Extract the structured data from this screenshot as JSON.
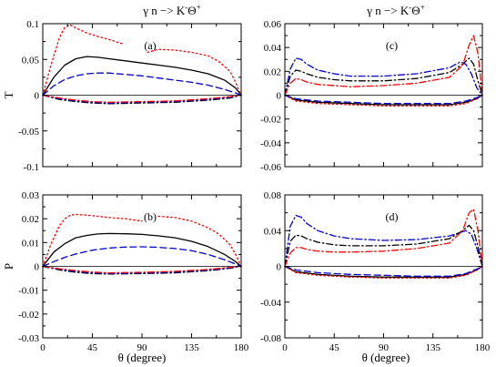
{
  "figure": {
    "col_titles": [
      {
        "gamma": "γ",
        "rest": "n −> K",
        "sup_k": "-",
        "theta": "Θ",
        "sup_t": "+"
      },
      {
        "gamma": "γ",
        "rest": "n −> K",
        "sup_k": "-",
        "theta": "Θ",
        "sup_t": "+"
      }
    ],
    "xlabel": "θ  (degree)"
  },
  "colors": {
    "black": "#000000",
    "red": "#ff0000",
    "blue": "#0000cc",
    "axis": "#000000"
  },
  "chart_data": [
    {
      "id": "a",
      "type": "line",
      "panel_label": "(a)",
      "ylabel": "T",
      "xlim": [
        0,
        180
      ],
      "ylim": [
        -0.1,
        0.1
      ],
      "xticks": [
        0,
        45,
        90,
        135,
        180
      ],
      "yticks": [
        -0.1,
        -0.05,
        0,
        0.05,
        0.1
      ],
      "yticklabels": [
        "-0.1",
        "-0.05",
        "0",
        "0.05",
        "0.1"
      ],
      "xticklabels": [
        "",
        "",
        "",
        "",
        ""
      ],
      "series": [
        {
          "color": "black",
          "dash": "solid",
          "x": [
            0,
            10,
            20,
            30,
            40,
            50,
            60,
            75,
            90,
            105,
            120,
            135,
            150,
            165,
            175,
            180
          ],
          "y": [
            0,
            0.025,
            0.042,
            0.051,
            0.054,
            0.053,
            0.051,
            0.048,
            0.045,
            0.042,
            0.039,
            0.035,
            0.03,
            0.021,
            0.01,
            0
          ]
        },
        {
          "color": "red",
          "dash": "dot",
          "x": [
            0,
            8,
            15,
            20,
            25,
            30,
            40,
            50,
            60,
            72
          ],
          "y": [
            0,
            0.045,
            0.08,
            0.095,
            0.098,
            0.094,
            0.087,
            0.082,
            0.078,
            0.072
          ]
        },
        {
          "color": "red",
          "dash": "dot",
          "x": [
            95,
            105,
            120,
            135,
            150,
            160,
            170,
            175,
            180
          ],
          "y": [
            0.06,
            0.064,
            0.063,
            0.06,
            0.055,
            0.047,
            0.033,
            0.018,
            0
          ]
        },
        {
          "color": "blue",
          "dash": "dash",
          "x": [
            0,
            10,
            20,
            30,
            40,
            50,
            60,
            75,
            90,
            105,
            120,
            135,
            150,
            165,
            175,
            180
          ],
          "y": [
            0,
            0.013,
            0.022,
            0.027,
            0.03,
            0.031,
            0.031,
            0.029,
            0.027,
            0.024,
            0.021,
            0.018,
            0.014,
            0.008,
            0.003,
            0
          ]
        },
        {
          "color": "black",
          "dash": "dashdot",
          "x": [
            0,
            15,
            30,
            45,
            60,
            90,
            120,
            150,
            170,
            180
          ],
          "y": [
            0,
            -0.006,
            -0.009,
            -0.011,
            -0.012,
            -0.011,
            -0.01,
            -0.007,
            -0.004,
            0
          ]
        },
        {
          "color": "blue",
          "dash": "dashdot",
          "x": [
            0,
            15,
            30,
            45,
            60,
            90,
            120,
            150,
            170,
            180
          ],
          "y": [
            0,
            -0.005,
            -0.008,
            -0.01,
            -0.011,
            -0.01,
            -0.009,
            -0.006,
            -0.003,
            0
          ]
        },
        {
          "color": "red",
          "dash": "dashdot",
          "x": [
            0,
            15,
            30,
            45,
            60,
            90,
            120,
            150,
            170,
            180
          ],
          "y": [
            0,
            -0.004,
            -0.007,
            -0.009,
            -0.01,
            -0.009,
            -0.008,
            -0.005,
            -0.002,
            0
          ]
        }
      ]
    },
    {
      "id": "c",
      "type": "line",
      "panel_label": "(c)",
      "ylabel": "",
      "xlim": [
        0,
        180
      ],
      "ylim": [
        -0.06,
        0.06
      ],
      "xticks": [
        0,
        45,
        90,
        135,
        180
      ],
      "yticks": [
        -0.06,
        -0.04,
        -0.02,
        0,
        0.02,
        0.04,
        0.06
      ],
      "yticklabels": [
        "-0.06",
        "-0.04",
        "-0.02",
        "0",
        "0.02",
        "0.04",
        "0.06"
      ],
      "xticklabels": [
        "",
        "",
        "",
        "",
        ""
      ],
      "series": [
        {
          "color": "blue",
          "dash": "dashdot",
          "x": [
            0,
            5,
            10,
            15,
            20,
            30,
            45,
            60,
            90,
            120,
            150,
            160,
            165,
            170,
            175,
            180
          ],
          "y": [
            0,
            0.022,
            0.031,
            0.03,
            0.026,
            0.021,
            0.018,
            0.016,
            0.016,
            0.018,
            0.023,
            0.028,
            0.026,
            0.018,
            0.006,
            0
          ]
        },
        {
          "color": "black",
          "dash": "dashdot",
          "x": [
            0,
            5,
            10,
            15,
            20,
            30,
            45,
            60,
            90,
            120,
            150,
            162,
            168,
            172,
            176,
            180
          ],
          "y": [
            0,
            0.016,
            0.021,
            0.02,
            0.018,
            0.015,
            0.013,
            0.012,
            0.012,
            0.014,
            0.019,
            0.026,
            0.031,
            0.026,
            0.012,
            0
          ]
        },
        {
          "color": "red",
          "dash": "dashdot",
          "x": [
            0,
            5,
            10,
            15,
            20,
            30,
            45,
            60,
            90,
            120,
            150,
            162,
            168,
            172,
            176,
            180
          ],
          "y": [
            0,
            0.01,
            0.014,
            0.013,
            0.011,
            0.009,
            0.008,
            0.007,
            0.008,
            0.01,
            0.015,
            0.025,
            0.042,
            0.05,
            0.035,
            0
          ]
        },
        {
          "color": "black",
          "dash": "solid",
          "x": [
            0,
            10,
            30,
            60,
            90,
            120,
            150,
            165,
            175,
            180
          ],
          "y": [
            0,
            -0.004,
            -0.006,
            -0.007,
            -0.008,
            -0.008,
            -0.008,
            -0.006,
            -0.003,
            0
          ]
        },
        {
          "color": "red",
          "dash": "dot",
          "x": [
            0,
            10,
            30,
            60,
            90,
            120,
            150,
            165,
            175,
            180
          ],
          "y": [
            0,
            -0.005,
            -0.007,
            -0.008,
            -0.009,
            -0.009,
            -0.009,
            -0.007,
            -0.003,
            0
          ]
        },
        {
          "color": "blue",
          "dash": "dash",
          "x": [
            0,
            10,
            30,
            60,
            90,
            120,
            150,
            165,
            175,
            180
          ],
          "y": [
            0,
            -0.003,
            -0.005,
            -0.006,
            -0.007,
            -0.007,
            -0.007,
            -0.005,
            -0.002,
            0
          ]
        }
      ]
    },
    {
      "id": "b",
      "type": "line",
      "panel_label": "(b)",
      "ylabel": "P",
      "xlim": [
        0,
        180
      ],
      "ylim": [
        -0.03,
        0.03
      ],
      "xticks": [
        0,
        45,
        90,
        135,
        180
      ],
      "yticks": [
        -0.03,
        -0.02,
        -0.01,
        0,
        0.01,
        0.02,
        0.03
      ],
      "yticklabels": [
        "-0.03",
        "-0.02",
        "-0.01",
        "0",
        "0.01",
        "0.02",
        "0.03"
      ],
      "xticklabels": [
        "0",
        "45",
        "90",
        "135",
        "180"
      ],
      "series": [
        {
          "color": "black",
          "dash": "solid",
          "x": [
            0,
            10,
            20,
            30,
            40,
            50,
            60,
            75,
            90,
            105,
            120,
            135,
            150,
            165,
            175,
            180
          ],
          "y": [
            0,
            0.006,
            0.0095,
            0.012,
            0.013,
            0.0136,
            0.0138,
            0.0137,
            0.0134,
            0.0128,
            0.012,
            0.0105,
            0.0083,
            0.005,
            0.002,
            0
          ]
        },
        {
          "color": "red",
          "dash": "dot",
          "x": [
            0,
            8,
            15,
            20,
            25,
            30,
            40,
            50,
            60,
            75,
            90
          ],
          "y": [
            0,
            0.01,
            0.017,
            0.02,
            0.0215,
            0.0218,
            0.0215,
            0.021,
            0.0205,
            0.02,
            0.019
          ]
        },
        {
          "color": "red",
          "dash": "dot",
          "x": [
            105,
            120,
            135,
            150,
            160,
            170,
            175,
            180
          ],
          "y": [
            0.021,
            0.0205,
            0.019,
            0.0162,
            0.0135,
            0.009,
            0.005,
            0
          ]
        },
        {
          "color": "blue",
          "dash": "dash",
          "x": [
            0,
            10,
            20,
            30,
            45,
            60,
            75,
            90,
            105,
            120,
            135,
            150,
            165,
            175,
            180
          ],
          "y": [
            0,
            0.002,
            0.0038,
            0.0052,
            0.0068,
            0.0077,
            0.0081,
            0.0082,
            0.008,
            0.0075,
            0.0066,
            0.005,
            0.0028,
            0.001,
            0
          ]
        },
        {
          "color": "black",
          "dash": "dashdot",
          "x": [
            0,
            15,
            30,
            45,
            60,
            90,
            120,
            150,
            170,
            180
          ],
          "y": [
            0,
            -0.0015,
            -0.0025,
            -0.003,
            -0.0032,
            -0.003,
            -0.0027,
            -0.0018,
            -0.0008,
            0
          ]
        },
        {
          "color": "blue",
          "dash": "dashdot",
          "x": [
            0,
            15,
            30,
            45,
            60,
            90,
            120,
            150,
            170,
            180
          ],
          "y": [
            0,
            -0.0012,
            -0.0022,
            -0.0027,
            -0.003,
            -0.0028,
            -0.0024,
            -0.0016,
            -0.0006,
            0
          ]
        },
        {
          "color": "red",
          "dash": "dashdot",
          "x": [
            0,
            15,
            30,
            45,
            60,
            90,
            120,
            150,
            170,
            180
          ],
          "y": [
            0,
            -0.001,
            -0.0018,
            -0.0024,
            -0.0027,
            -0.0025,
            -0.0021,
            -0.0013,
            -0.0004,
            0
          ]
        }
      ]
    },
    {
      "id": "d",
      "type": "line",
      "panel_label": "(d)",
      "ylabel": "",
      "xlim": [
        0,
        180
      ],
      "ylim": [
        -0.08,
        0.08
      ],
      "xticks": [
        0,
        45,
        90,
        135,
        180
      ],
      "yticks": [
        -0.08,
        -0.04,
        0,
        0.04,
        0.08
      ],
      "yticklabels": [
        "-0.08",
        "-0.04",
        "0",
        "0.04",
        "0.08"
      ],
      "xticklabels": [
        "0",
        "45",
        "90",
        "135",
        "180"
      ],
      "series": [
        {
          "color": "blue",
          "dash": "dashdot",
          "x": [
            0,
            5,
            10,
            15,
            20,
            30,
            45,
            60,
            90,
            120,
            150,
            160,
            165,
            170,
            175,
            180
          ],
          "y": [
            0,
            0.045,
            0.057,
            0.055,
            0.048,
            0.04,
            0.034,
            0.031,
            0.029,
            0.03,
            0.034,
            0.038,
            0.04,
            0.036,
            0.02,
            0
          ]
        },
        {
          "color": "black",
          "dash": "dashdot",
          "x": [
            0,
            5,
            10,
            15,
            20,
            30,
            45,
            60,
            90,
            120,
            150,
            162,
            168,
            172,
            176,
            180
          ],
          "y": [
            0,
            0.028,
            0.035,
            0.034,
            0.031,
            0.027,
            0.024,
            0.023,
            0.023,
            0.025,
            0.031,
            0.04,
            0.046,
            0.04,
            0.022,
            0
          ]
        },
        {
          "color": "red",
          "dash": "dashdot",
          "x": [
            0,
            5,
            10,
            15,
            20,
            30,
            45,
            60,
            90,
            120,
            150,
            162,
            168,
            172,
            176,
            180
          ],
          "y": [
            0,
            0.015,
            0.021,
            0.021,
            0.019,
            0.017,
            0.016,
            0.016,
            0.017,
            0.02,
            0.026,
            0.04,
            0.06,
            0.064,
            0.04,
            0
          ]
        },
        {
          "color": "black",
          "dash": "solid",
          "x": [
            0,
            10,
            30,
            60,
            90,
            120,
            150,
            165,
            175,
            180
          ],
          "y": [
            0,
            -0.006,
            -0.009,
            -0.011,
            -0.012,
            -0.012,
            -0.012,
            -0.009,
            -0.004,
            0
          ]
        },
        {
          "color": "red",
          "dash": "dot",
          "x": [
            0,
            10,
            30,
            60,
            90,
            120,
            150,
            165,
            175,
            180
          ],
          "y": [
            0,
            -0.007,
            -0.01,
            -0.012,
            -0.013,
            -0.013,
            -0.013,
            -0.01,
            -0.004,
            0
          ]
        },
        {
          "color": "blue",
          "dash": "dash",
          "x": [
            0,
            10,
            30,
            60,
            90,
            120,
            150,
            165,
            175,
            180
          ],
          "y": [
            0,
            -0.004,
            -0.007,
            -0.009,
            -0.01,
            -0.011,
            -0.011,
            -0.008,
            -0.003,
            0
          ]
        }
      ]
    }
  ]
}
